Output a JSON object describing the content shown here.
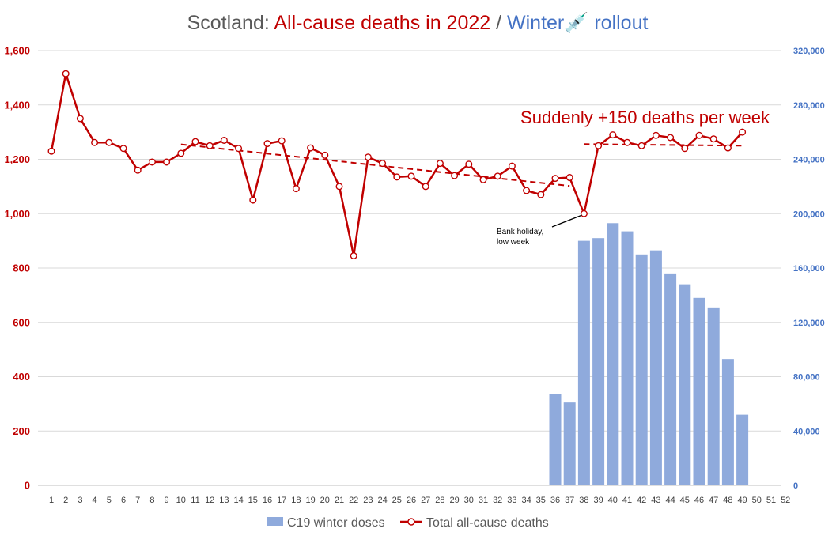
{
  "chart_data": {
    "type": "bar+line",
    "title": {
      "prefix": "Scotland: ",
      "red": "All-cause deaths in 2022",
      "sep": " / ",
      "blue": "Winter",
      "icon": "💉",
      "suffix": " rollout"
    },
    "x": [
      1,
      2,
      3,
      4,
      5,
      6,
      7,
      8,
      9,
      10,
      11,
      12,
      13,
      14,
      15,
      16,
      17,
      18,
      19,
      20,
      21,
      22,
      23,
      24,
      25,
      26,
      27,
      28,
      29,
      30,
      31,
      32,
      33,
      34,
      35,
      36,
      37,
      38,
      39,
      40,
      41,
      42,
      43,
      44,
      45,
      46,
      47,
      48,
      49,
      50,
      51,
      52
    ],
    "xlim": [
      1,
      52
    ],
    "y_left": {
      "ylim": [
        0,
        1600
      ],
      "ticks": [
        0,
        200,
        400,
        600,
        800,
        1000,
        1200,
        1400,
        1600
      ],
      "tick_labels": [
        "0",
        "200",
        "400",
        "600",
        "800",
        "1,000",
        "1,200",
        "1,400",
        "1,600"
      ],
      "color": "#c00000"
    },
    "y_right": {
      "ylim": [
        0,
        320000
      ],
      "ticks": [
        0,
        40000,
        80000,
        120000,
        160000,
        200000,
        240000,
        280000,
        320000
      ],
      "tick_labels": [
        "0",
        "40,000",
        "80,000",
        "120,000",
        "160,000",
        "200,000",
        "240,000",
        "280,000",
        "320,000"
      ],
      "color": "#4472c4"
    },
    "series": [
      {
        "name": "C19 winter doses",
        "type": "bar",
        "axis": "right",
        "color": "#8faadc",
        "x": [
          36,
          37,
          38,
          39,
          40,
          41,
          42,
          43,
          44,
          45,
          46,
          47,
          48,
          49
        ],
        "values": [
          67000,
          61000,
          180000,
          182000,
          193000,
          187000,
          170000,
          173000,
          156000,
          148000,
          138000,
          131000,
          93000,
          52000
        ]
      },
      {
        "name": "Total all-cause deaths",
        "type": "line",
        "axis": "left",
        "color": "#c00000",
        "x": [
          1,
          2,
          3,
          4,
          5,
          6,
          7,
          8,
          9,
          10,
          11,
          12,
          13,
          14,
          15,
          16,
          17,
          18,
          19,
          20,
          21,
          22,
          23,
          24,
          25,
          26,
          27,
          28,
          29,
          30,
          31,
          32,
          33,
          34,
          35,
          36,
          37,
          38,
          39,
          40,
          41,
          42,
          43,
          44,
          45,
          46,
          47,
          48,
          49
        ],
        "values": [
          1230,
          1515,
          1350,
          1262,
          1262,
          1240,
          1160,
          1190,
          1190,
          1222,
          1265,
          1250,
          1270,
          1240,
          1050,
          1258,
          1268,
          1092,
          1242,
          1215,
          1100,
          845,
          1208,
          1185,
          1135,
          1138,
          1100,
          1185,
          1140,
          1182,
          1125,
          1138,
          1175,
          1085,
          1070,
          1130,
          1133,
          1000,
          1250,
          1290,
          1262,
          1250,
          1288,
          1280,
          1240,
          1288,
          1275,
          1242,
          1300
        ]
      }
    ],
    "trendlines": [
      {
        "x": [
          10,
          37
        ],
        "values": [
          1255,
          1102
        ],
        "color": "#c00000"
      },
      {
        "x": [
          38,
          49
        ],
        "values": [
          1256,
          1250
        ],
        "color": "#c00000"
      }
    ],
    "annotations": [
      {
        "id": "spike",
        "text": "Suddenly +150 deaths per week",
        "color": "#c00000"
      },
      {
        "id": "bank-holiday",
        "lines": [
          "Bank holiday,",
          "low week"
        ],
        "points_to": {
          "x": 38,
          "value": 1000
        },
        "color": "#000000"
      }
    ],
    "legend": {
      "placement": "bottom",
      "entries": [
        "C19 winter doses",
        "Total all-cause deaths"
      ]
    },
    "grid": {
      "horizontal": true,
      "color": "#d9d9d9"
    }
  }
}
